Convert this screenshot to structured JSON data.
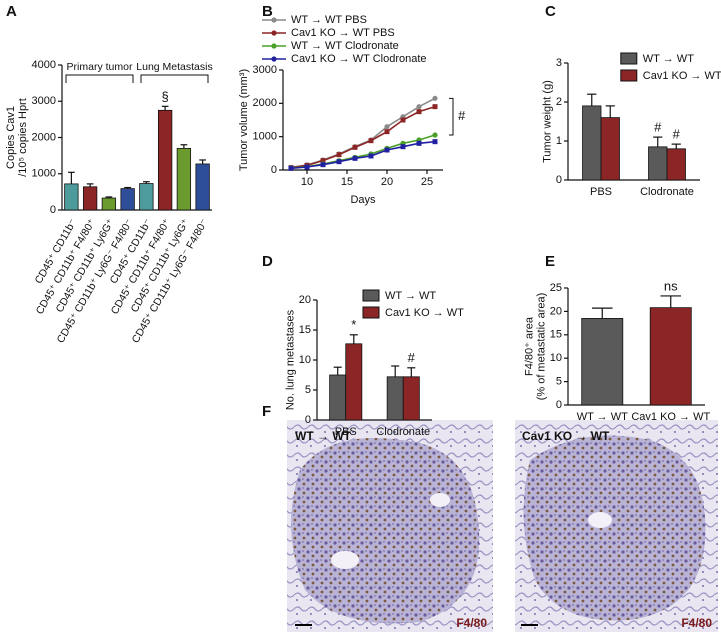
{
  "panel_labels": [
    "A",
    "B",
    "C",
    "D",
    "E",
    "F"
  ],
  "chart_data": [
    {
      "type": "bar",
      "ylabel": [
        "Copies Cav1",
        "/10⁵ copies Hprt"
      ],
      "groups": [
        "Primary tumor",
        "Lung Metastasis"
      ],
      "categories": [
        "CD45⁺ CD11b⁻",
        "CD45⁺ CD11b⁺ F4/80⁺",
        "CD45⁺ CD11b⁺ Ly6G⁺",
        "CD45⁺ CD11b⁺ Ly6G⁻ F4/80⁻",
        "CD45⁺ CD11b⁻",
        "CD45⁺ CD11b⁺ F4/80⁺",
        "CD45⁺ CD11b⁺ Ly6G⁺",
        "CD45⁺ CD11b⁺ Ly6G⁻ F4/80⁻"
      ],
      "values": [
        720,
        640,
        330,
        590,
        730,
        2750,
        1700,
        1270
      ],
      "errors": [
        320,
        80,
        30,
        30,
        50,
        110,
        100,
        110
      ],
      "value_annotations": [
        null,
        null,
        null,
        null,
        null,
        "§",
        null,
        null
      ],
      "colors": [
        "#4e9b9b",
        "#8c2626",
        "#6b9a2e",
        "#2e4e9a",
        "#4e9b9b",
        "#8c2626",
        "#6b9a2e",
        "#2e4e9a"
      ],
      "ylim": [
        0,
        4000
      ],
      "yticks": [
        0,
        1000,
        2000,
        3000,
        4000
      ]
    },
    {
      "type": "line",
      "xlabel": "Days",
      "ylabel": "Tumor volume (mm³)",
      "x": [
        8,
        10,
        12,
        14,
        16,
        18,
        20,
        22,
        24,
        26
      ],
      "series": [
        {
          "name": "WT → WT PBS",
          "color": "#8a8a8a",
          "values": [
            80,
            150,
            300,
            480,
            700,
            900,
            1300,
            1600,
            1900,
            2150
          ]
        },
        {
          "name": "Cav1 KO → WT PBS",
          "color": "#8c2626",
          "values": [
            70,
            140,
            280,
            460,
            680,
            880,
            1150,
            1500,
            1750,
            1900
          ]
        },
        {
          "name": "WT → WT Clodronate",
          "color": "#4aa028",
          "values": [
            60,
            100,
            180,
            280,
            380,
            480,
            650,
            800,
            900,
            1050
          ]
        },
        {
          "name": "Cav1 KO → WT Clodronate",
          "color": "#2020a0",
          "values": [
            50,
            90,
            160,
            250,
            350,
            420,
            600,
            700,
            800,
            850
          ]
        }
      ],
      "annotation": "#",
      "xlim": [
        7,
        27
      ],
      "xticks": [
        10,
        15,
        20,
        25
      ],
      "ylim": [
        0,
        3000
      ],
      "yticks": [
        0,
        1000,
        2000,
        3000
      ]
    },
    {
      "type": "bar",
      "ylabel": "Tumor weight (g)",
      "categories": [
        "PBS",
        "Clodronate"
      ],
      "series": [
        {
          "name": "WT → WT",
          "color": "#5a5a5a",
          "values": [
            1.9,
            0.85
          ],
          "errors": [
            0.3,
            0.25
          ],
          "value_annotations": [
            null,
            "#"
          ]
        },
        {
          "name": "Cav1 KO → WT",
          "color": "#8c2626",
          "values": [
            1.6,
            0.8
          ],
          "errors": [
            0.3,
            0.12
          ],
          "value_annotations": [
            null,
            "#"
          ]
        }
      ],
      "ylim": [
        0,
        3
      ],
      "yticks": [
        0,
        1,
        2,
        3
      ]
    },
    {
      "type": "bar",
      "ylabel": "No. lung metastases",
      "categories": [
        "PBS",
        "Clodronate"
      ],
      "series": [
        {
          "name": "WT → WT",
          "color": "#5a5a5a",
          "values": [
            7.5,
            7.2
          ],
          "errors": [
            1.3,
            1.8
          ],
          "value_annotations": [
            null,
            null
          ]
        },
        {
          "name": "Cav1 KO → WT",
          "color": "#8c2626",
          "values": [
            12.7,
            7.2
          ],
          "errors": [
            1.5,
            1.5
          ],
          "value_annotations": [
            "*",
            "#"
          ]
        }
      ],
      "ylim": [
        0,
        20
      ],
      "yticks": [
        0,
        5,
        10,
        15,
        20
      ]
    },
    {
      "type": "bar",
      "ylabel": [
        "F4/80⁺ area",
        "(% of metastatic area)"
      ],
      "categories": [
        "WT → WT",
        "Cav1 KO → WT"
      ],
      "values": [
        18.5,
        20.8
      ],
      "errors": [
        2.2,
        2.5
      ],
      "value_annotations": [
        null,
        "ns"
      ],
      "colors": [
        "#5a5a5a",
        "#8c2626"
      ],
      "ylim": [
        0,
        25
      ],
      "yticks": [
        0,
        5,
        10,
        15,
        20,
        25
      ]
    }
  ],
  "micrographs": [
    {
      "label": "WT → WT",
      "stain": "F4/80"
    },
    {
      "label": "Cav1 KO → WT",
      "stain": "F4/80"
    }
  ]
}
